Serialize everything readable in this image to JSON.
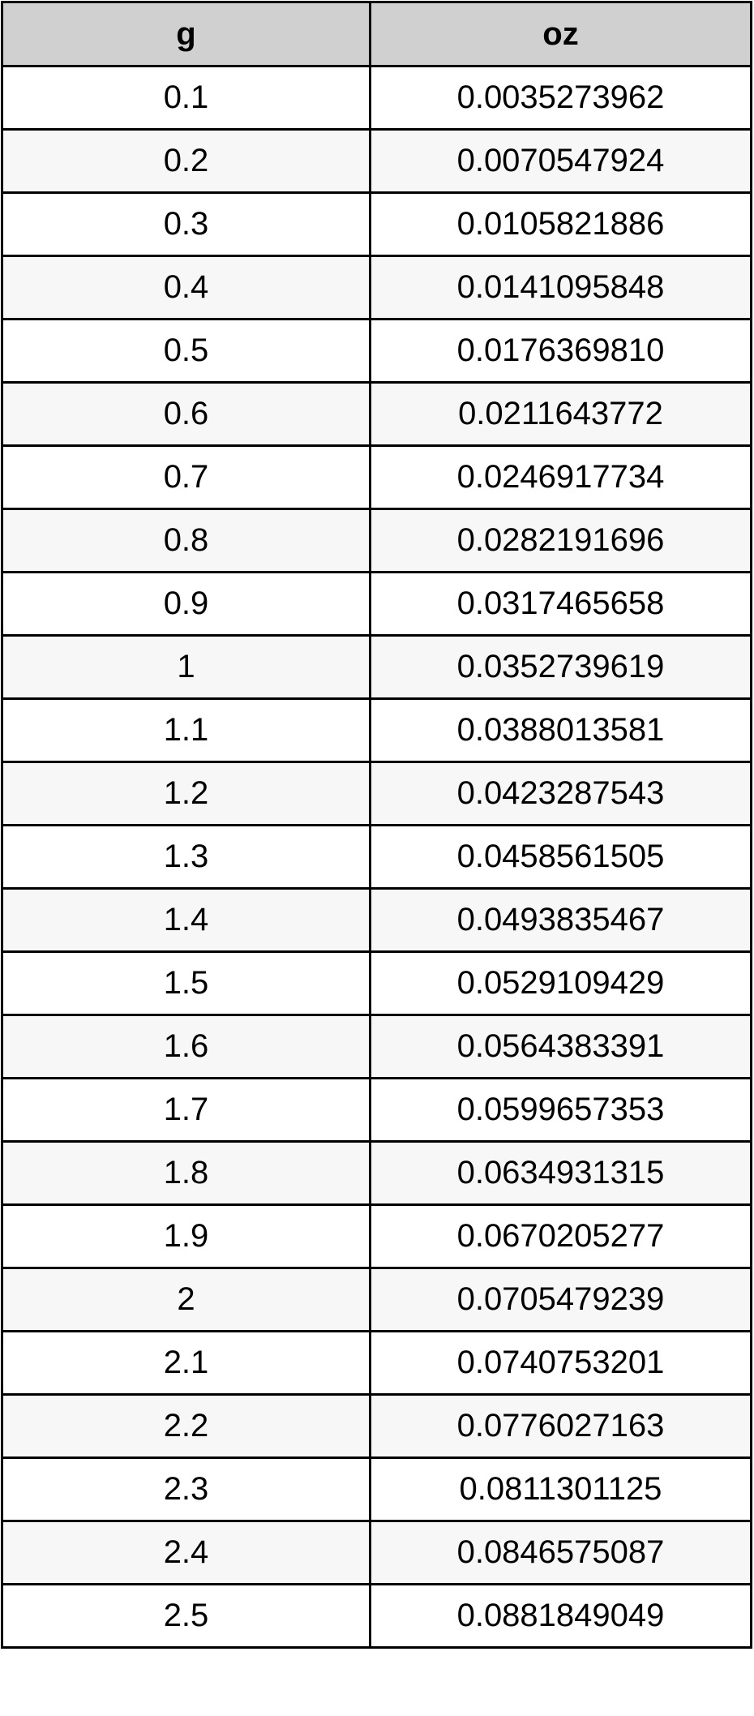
{
  "table": {
    "headers": [
      "g",
      "oz"
    ],
    "rows": [
      [
        "0.1",
        "0.0035273962"
      ],
      [
        "0.2",
        "0.0070547924"
      ],
      [
        "0.3",
        "0.0105821886"
      ],
      [
        "0.4",
        "0.0141095848"
      ],
      [
        "0.5",
        "0.0176369810"
      ],
      [
        "0.6",
        "0.0211643772"
      ],
      [
        "0.7",
        "0.0246917734"
      ],
      [
        "0.8",
        "0.0282191696"
      ],
      [
        "0.9",
        "0.0317465658"
      ],
      [
        "1",
        "0.0352739619"
      ],
      [
        "1.1",
        "0.0388013581"
      ],
      [
        "1.2",
        "0.0423287543"
      ],
      [
        "1.3",
        "0.0458561505"
      ],
      [
        "1.4",
        "0.0493835467"
      ],
      [
        "1.5",
        "0.0529109429"
      ],
      [
        "1.6",
        "0.0564383391"
      ],
      [
        "1.7",
        "0.0599657353"
      ],
      [
        "1.8",
        "0.0634931315"
      ],
      [
        "1.9",
        "0.0670205277"
      ],
      [
        "2",
        "0.0705479239"
      ],
      [
        "2.1",
        "0.0740753201"
      ],
      [
        "2.2",
        "0.0776027163"
      ],
      [
        "2.3",
        "0.0811301125"
      ],
      [
        "2.4",
        "0.0846575087"
      ],
      [
        "2.5",
        "0.0881849049"
      ]
    ]
  },
  "colors": {
    "header_bg": "#d0d0d0",
    "row_alt_bg": "#f7f7f7",
    "border": "#000000"
  }
}
